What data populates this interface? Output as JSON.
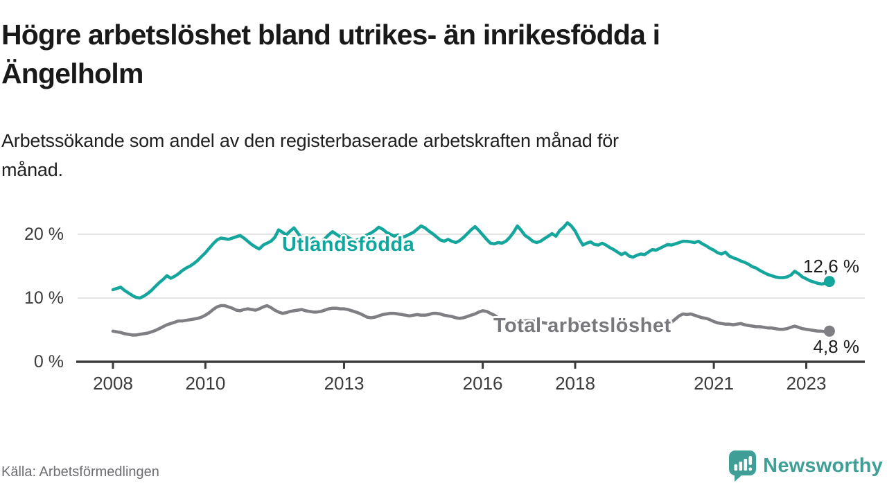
{
  "header": {
    "title": "Högre arbetslöshet bland utrikes- än inrikesfödda i Ängelholm",
    "title_lines": [
      "Högre arbetslöshet bland utrikes- än inrikesfödda i",
      "Ängelholm"
    ],
    "subtitle": "Arbetssökande som andel av den registerbaserade arbetskraften månad för månad.",
    "subtitle_lines": [
      "Arbetssökande som andel av den registerbaserade arbetskraften månad för",
      "månad."
    ]
  },
  "footer": {
    "source": "Källa: Arbetsförmedlingen",
    "brand": "Newsworthy",
    "brand_color": "#3f9f97"
  },
  "chart_data": {
    "type": "line",
    "title": "Högre arbetslöshet bland utrikes- än inrikesfödda i Ängelholm",
    "unit": "%",
    "frequency": "monthly",
    "start_month": "2008-01",
    "end_month": "2023-07",
    "grid": "horizontal-only",
    "legend_position": "inline-labels",
    "y_axis": {
      "labels": [
        "20 %",
        "10 %",
        "0 %"
      ],
      "values": [
        20,
        10,
        0
      ],
      "lim": [
        0,
        23
      ],
      "gridlines": [
        20,
        10
      ]
    },
    "x_axis": {
      "ticks": [
        {
          "label": "2008",
          "year": 2008
        },
        {
          "label": "2010",
          "year": 2010
        },
        {
          "label": "2013",
          "year": 2013
        },
        {
          "label": "2016",
          "year": 2016
        },
        {
          "label": "2018",
          "year": 2018
        },
        {
          "label": "2021",
          "year": 2021
        },
        {
          "label": "2023",
          "year": 2023
        }
      ]
    },
    "series": [
      {
        "name": "Utlandsfödda",
        "label": "Utlandsfödda",
        "end_label": "12,6 %",
        "end_value": 12.6,
        "color": "#14a69c",
        "values": [
          11.3,
          11.5,
          11.7,
          11.2,
          10.8,
          10.4,
          10.1,
          10.0,
          10.3,
          10.7,
          11.2,
          11.8,
          12.4,
          12.9,
          13.5,
          13.1,
          13.4,
          13.8,
          14.3,
          14.7,
          15.0,
          15.4,
          15.9,
          16.5,
          17.1,
          17.8,
          18.5,
          19.1,
          19.4,
          19.3,
          19.2,
          19.4,
          19.6,
          19.8,
          19.4,
          18.9,
          18.4,
          18.0,
          17.7,
          18.3,
          18.6,
          18.9,
          19.5,
          20.7,
          20.3,
          19.9,
          20.5,
          21.0,
          20.2,
          19.3,
          18.6,
          18.9,
          19.4,
          19.0,
          18.7,
          19.3,
          19.9,
          20.4,
          20.0,
          19.6,
          19.9,
          19.5,
          19.2,
          19.0,
          19.3,
          19.6,
          19.9,
          20.2,
          20.6,
          21.1,
          20.8,
          20.3,
          20.0,
          19.7,
          19.9,
          19.5,
          19.7,
          20.0,
          20.3,
          20.8,
          21.3,
          21.0,
          20.5,
          20.1,
          19.6,
          19.1,
          18.9,
          19.2,
          18.9,
          18.7,
          19.0,
          19.5,
          20.1,
          20.7,
          21.2,
          20.6,
          19.9,
          19.2,
          18.6,
          18.5,
          18.7,
          18.6,
          18.9,
          19.5,
          20.3,
          21.3,
          20.6,
          19.8,
          19.4,
          18.9,
          18.7,
          18.9,
          19.3,
          19.7,
          20.1,
          19.7,
          20.6,
          21.1,
          21.8,
          21.3,
          20.5,
          19.3,
          18.3,
          18.6,
          18.8,
          18.4,
          18.3,
          18.6,
          18.3,
          17.9,
          17.6,
          17.2,
          16.8,
          17.1,
          16.6,
          16.4,
          16.7,
          16.9,
          16.8,
          17.2,
          17.6,
          17.5,
          17.8,
          18.1,
          18.4,
          18.3,
          18.5,
          18.7,
          18.9,
          18.9,
          18.8,
          18.7,
          18.9,
          18.5,
          18.2,
          17.8,
          17.5,
          17.1,
          16.9,
          17.2,
          16.6,
          16.3,
          16.1,
          15.8,
          15.6,
          15.3,
          14.9,
          14.7,
          14.3,
          14.0,
          13.7,
          13.5,
          13.3,
          13.2,
          13.2,
          13.3,
          13.6,
          14.2,
          13.8,
          13.3,
          13.0,
          12.7,
          12.5,
          12.3,
          12.2,
          12.3,
          12.6
        ]
      },
      {
        "name": "Total arbetslöshet",
        "label": "Total arbetslöshet",
        "end_label": "4,8 %",
        "end_value": 4.8,
        "color": "#7e7e83",
        "values": [
          4.8,
          4.7,
          4.6,
          4.4,
          4.3,
          4.2,
          4.2,
          4.3,
          4.4,
          4.5,
          4.7,
          4.9,
          5.2,
          5.5,
          5.8,
          6.0,
          6.2,
          6.4,
          6.4,
          6.5,
          6.6,
          6.7,
          6.8,
          7.0,
          7.3,
          7.7,
          8.2,
          8.6,
          8.8,
          8.8,
          8.6,
          8.4,
          8.1,
          8.0,
          8.2,
          8.3,
          8.2,
          8.1,
          8.3,
          8.6,
          8.8,
          8.5,
          8.1,
          7.8,
          7.6,
          7.7,
          7.9,
          8.0,
          8.1,
          8.2,
          8.0,
          7.9,
          7.8,
          7.8,
          7.9,
          8.1,
          8.3,
          8.4,
          8.4,
          8.3,
          8.3,
          8.2,
          8.0,
          7.8,
          7.6,
          7.3,
          7.0,
          6.9,
          7.0,
          7.2,
          7.4,
          7.5,
          7.6,
          7.6,
          7.5,
          7.4,
          7.3,
          7.2,
          7.3,
          7.4,
          7.3,
          7.3,
          7.4,
          7.6,
          7.6,
          7.5,
          7.3,
          7.2,
          7.1,
          6.9,
          6.8,
          6.9,
          7.1,
          7.3,
          7.5,
          7.8,
          8.0,
          7.9,
          7.6,
          7.3,
          6.9,
          6.5,
          6.3,
          6.2,
          6.2,
          6.3,
          6.3,
          6.4,
          6.5,
          6.4,
          6.3,
          6.2,
          6.1,
          6.0,
          5.9,
          5.9,
          6.0,
          6.0,
          6.1,
          6.2,
          6.3,
          6.2,
          6.1,
          6.0,
          5.9,
          5.8,
          5.8,
          5.8,
          5.8,
          5.8,
          5.9,
          6.0,
          6.0,
          5.9,
          5.8,
          5.7,
          5.6,
          5.6,
          5.5,
          5.6,
          5.6,
          5.7,
          5.8,
          5.9,
          6.1,
          6.2,
          6.7,
          7.2,
          7.5,
          7.4,
          7.5,
          7.3,
          7.1,
          6.9,
          6.8,
          6.6,
          6.3,
          6.1,
          6.0,
          5.9,
          5.9,
          5.8,
          5.9,
          6.0,
          5.8,
          5.7,
          5.6,
          5.5,
          5.5,
          5.4,
          5.3,
          5.3,
          5.2,
          5.1,
          5.1,
          5.2,
          5.4,
          5.6,
          5.4,
          5.2,
          5.1,
          5.0,
          4.9,
          4.8,
          4.8,
          4.7,
          4.8
        ]
      }
    ]
  }
}
